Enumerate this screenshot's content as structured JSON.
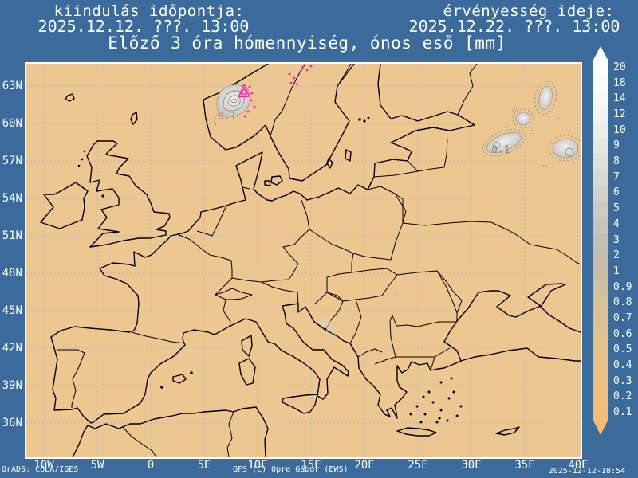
{
  "header": {
    "left_label": "kiindulás időpontja:",
    "left_datetime": "2025.12.12. ???. 13:00",
    "right_label": "érvényesség ideje:",
    "right_datetime": "2025.12.22. ???. 13:00",
    "title": "Előző 3 óra hómennyiség, ónos eső [mm]"
  },
  "footer": {
    "grads_credit": "GrADS: COLA/IGES",
    "model_credit": "GFS (C) Opre Gábor (EWS)",
    "timestamp": "2025-12-12-18:54"
  },
  "map": {
    "lat_labels": [
      "63N",
      "60N",
      "57N",
      "54N",
      "51N",
      "48N",
      "45N",
      "42N",
      "39N",
      "36N"
    ],
    "lon_labels": [
      "10W",
      "5W",
      "0",
      "5E",
      "10E",
      "15E",
      "20E",
      "25E",
      "30E",
      "35E",
      "40E"
    ],
    "annotations": [
      {
        "text": "0.1",
        "location": "southern-norway"
      },
      {
        "text": "0.1",
        "location": "northeast-russia"
      }
    ],
    "unit": "mm",
    "freezing_rain_color": "#f320a8",
    "land_color": "#ecc791",
    "background_color": "#3a6b9b"
  },
  "colorbar": {
    "levels": [
      {
        "label": "20",
        "color": "#ffffff"
      },
      {
        "label": "18",
        "color": "#fcfcfc"
      },
      {
        "label": "14",
        "color": "#f8f8f7"
      },
      {
        "label": "12",
        "color": "#f3f3f1"
      },
      {
        "label": "10",
        "color": "#ededea"
      },
      {
        "label": "9",
        "color": "#e7e6e3"
      },
      {
        "label": "8",
        "color": "#e0dfdc"
      },
      {
        "label": "7",
        "color": "#dad8d4"
      },
      {
        "label": "6",
        "color": "#d3d1cc"
      },
      {
        "label": "5",
        "color": "#cdcac4"
      },
      {
        "label": "4",
        "color": "#c8c4bd"
      },
      {
        "label": "3",
        "color": "#c4bfb6"
      },
      {
        "label": "2",
        "color": "#c5bcae"
      },
      {
        "label": "1",
        "color": "#cabda7"
      },
      {
        "label": "0.9",
        "color": "#d0bfa1"
      },
      {
        "label": "0.8",
        "color": "#d6c09b"
      },
      {
        "label": "0.7",
        "color": "#dcc196"
      },
      {
        "label": "0.6",
        "color": "#e1c190"
      },
      {
        "label": "0.5",
        "color": "#e5c18b"
      },
      {
        "label": "0.4",
        "color": "#e9c086"
      },
      {
        "label": "0.3",
        "color": "#edbf81"
      },
      {
        "label": "0.2",
        "color": "#f0be7d"
      },
      {
        "label": "0.1",
        "color": "#f2bd78"
      }
    ],
    "arrow_top_color": "#ffffff",
    "arrow_bottom_color": "#f4bc72"
  }
}
